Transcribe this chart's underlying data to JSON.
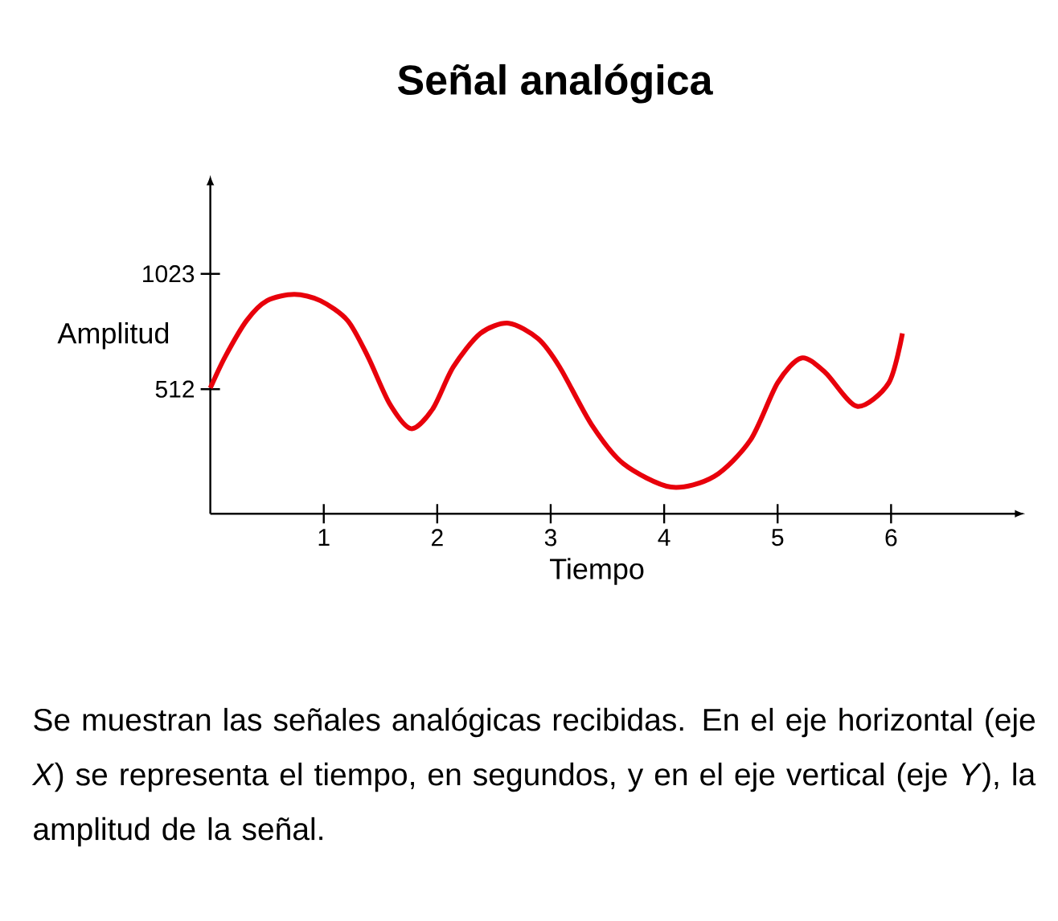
{
  "chart_data": {
    "type": "line",
    "title": "Señal analógica",
    "xlabel": "Tiempo",
    "ylabel": "Amplitud",
    "x": [
      0,
      0.13,
      0.32,
      0.5,
      0.74,
      0.97,
      1.21,
      1.39,
      1.58,
      1.77,
      1.96,
      2.14,
      2.38,
      2.63,
      2.89,
      3.08,
      3.36,
      3.64,
      4.06,
      4.44,
      4.76,
      5.0,
      5.21,
      5.42,
      5.7,
      5.98,
      6.1
    ],
    "values": [
      517,
      655,
      816,
      904,
      932,
      904,
      816,
      655,
      448,
      337,
      424,
      609,
      759,
      804,
      735,
      609,
      355,
      182,
      78,
      125,
      286,
      540,
      650,
      586,
      436,
      540,
      759
    ],
    "color": "#e8000b",
    "xlim": [
      0,
      7.1
    ],
    "ylim": [
      -40,
      1420
    ],
    "xticks": [
      1,
      2,
      3,
      4,
      5,
      6
    ],
    "yticks": [
      512,
      1023
    ],
    "annotations": [
      "Se muestran las señales analógicas recibidas. En el eje horizontal (eje *X*) se representa el tiempo, en segundos, y en el eje vertical (eje *Y*), la amplitud de la señal."
    ]
  }
}
